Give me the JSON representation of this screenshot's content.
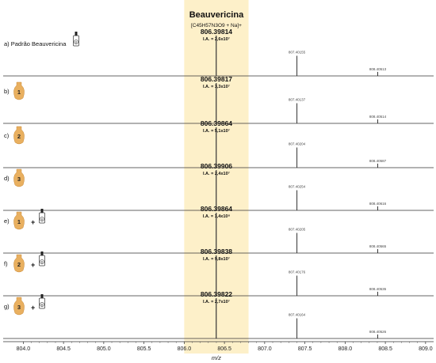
{
  "chart_data": {
    "type": "line",
    "title": "Beauvericina",
    "subtitle": "[C45H57N3O9 + Na]+",
    "xlabel": "m/z",
    "xlim": [
      803.75,
      809.1
    ],
    "xticks": [
      "804.0",
      "804.5",
      "805.0",
      "805.5",
      "806.0",
      "806.5",
      "807.0",
      "807.5",
      "808.0",
      "808.5",
      "809.0"
    ],
    "highlight_range": [
      806.0,
      806.8
    ],
    "colors": {
      "highlight": "#fdf0c9",
      "trace": "#333333",
      "flask": "#e9b060"
    },
    "panels": [
      {
        "label": "a) Padrão Beauvericina",
        "badge": "",
        "sample": "",
        "has_plus": false,
        "has_std": true,
        "peak_mz": "806.39814",
        "ia": "I.A. = 2,6x10⁷",
        "iso1": "807.40155",
        "iso2": "808.40513"
      },
      {
        "label": "b)",
        "badge": "1",
        "sample": "flask",
        "has_plus": false,
        "has_std": false,
        "peak_mz": "806.39817",
        "ia": "I.A. = 3,3x10⁷",
        "iso1": "807.40137",
        "iso2": "808.40514"
      },
      {
        "label": "c)",
        "badge": "2",
        "sample": "flask",
        "has_plus": false,
        "has_std": false,
        "peak_mz": "806.39864",
        "ia": "I.A. = 5,1x10⁷",
        "iso1": "807.40204",
        "iso2": "808.40587"
      },
      {
        "label": "d)",
        "badge": "3",
        "sample": "flask",
        "has_plus": false,
        "has_std": false,
        "peak_mz": "806.39906",
        "ia": "I.A. = 2,4x10⁷",
        "iso1": "807.40254",
        "iso2": "808.40616"
      },
      {
        "label": "e)",
        "badge": "1",
        "sample": "flask",
        "has_plus": true,
        "has_std": true,
        "peak_mz": "806.39864",
        "ia": "I.A. = 1,4x10⁸",
        "iso1": "807.40205",
        "iso2": "808.40565"
      },
      {
        "label": "f)",
        "badge": "2",
        "sample": "flask",
        "has_plus": true,
        "has_std": true,
        "peak_mz": "806.39838",
        "ia": "I.A. = 9,8x10⁷",
        "iso1": "807.40176",
        "iso2": "808.40535"
      },
      {
        "label": "g)",
        "badge": "3",
        "sample": "flask",
        "has_plus": true,
        "has_std": true,
        "peak_mz": "806.39822",
        "ia": "I.A. = 2,7x10⁷",
        "iso1": "807.40164",
        "iso2": "808.40526"
      }
    ],
    "peaks": [
      {
        "mz": 806.398,
        "rel": 1.0
      },
      {
        "mz": 807.401,
        "rel": 0.5
      },
      {
        "mz": 808.405,
        "rel": 0.1
      }
    ],
    "std_vial_letter": "B"
  }
}
